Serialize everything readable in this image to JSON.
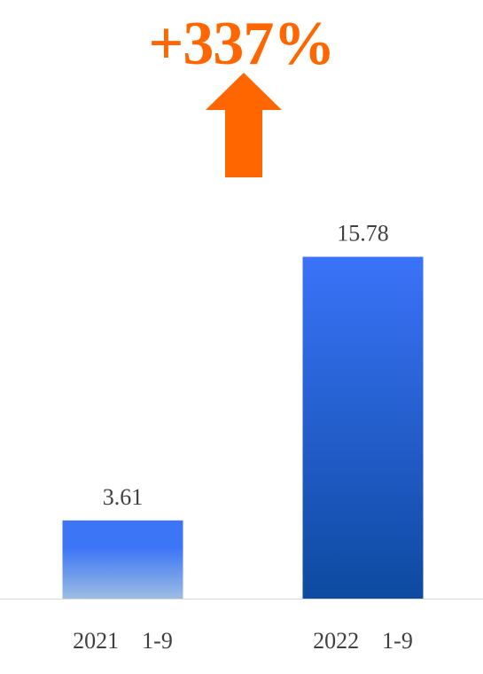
{
  "growth_annotation": {
    "text": "+337%",
    "color": "#ff6600"
  },
  "chart_data": {
    "type": "bar",
    "categories": [
      "2021    1-9",
      "2022    1-9"
    ],
    "values": [
      3.61,
      15.78
    ],
    "data_labels": [
      "3.61",
      "15.78"
    ],
    "ylim": [
      0,
      17.4
    ],
    "grid": false,
    "legend": "none",
    "colors": {
      "bar_2021_top": "#3d75f7",
      "bar_2021_bottom": "#9cbde2",
      "bar_2022_top": "#3a73f9",
      "bar_2022_bottom": "#0d4aa0",
      "axis_line": "#d9d9d9",
      "label_text": "#404040"
    }
  }
}
